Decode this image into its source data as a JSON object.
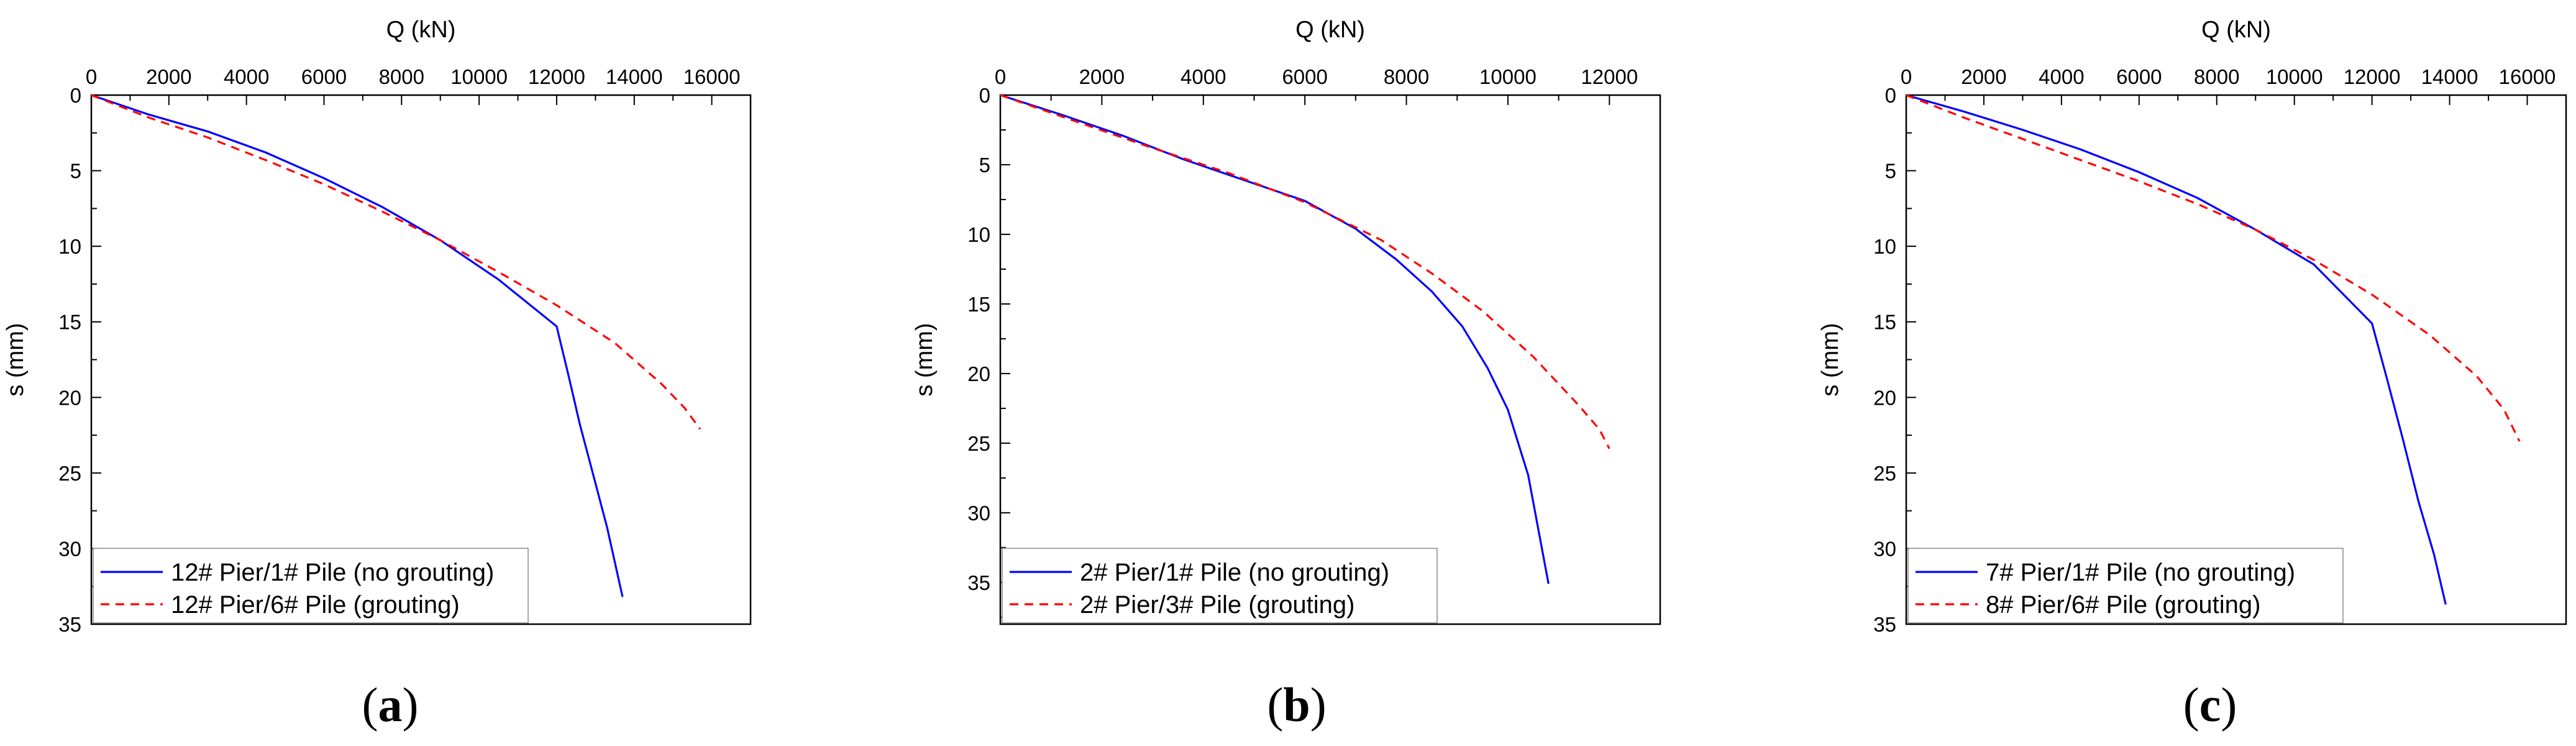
{
  "chart_data": [
    {
      "type": "line",
      "panel_label": "a",
      "xlabel": "Q (kN)",
      "ylabel": "s (mm)",
      "x_axis_position": "top",
      "y_axis_inverted": true,
      "xlim": [
        0,
        17000
      ],
      "ylim": [
        0,
        35
      ],
      "x_ticks": [
        0,
        2000,
        4000,
        6000,
        8000,
        10000,
        12000,
        14000,
        16000
      ],
      "y_ticks": [
        0,
        5,
        10,
        15,
        20,
        25,
        30,
        35
      ],
      "legend_position": "bottom-left",
      "series": [
        {
          "name": "12# Pier/1# Pile (no grouting)",
          "color": "#0000ff",
          "dash": "solid",
          "x": [
            0,
            1500,
            3000,
            4500,
            6000,
            7500,
            9000,
            10500,
            12000,
            12300,
            12600,
            12900,
            13300,
            13700
          ],
          "y": [
            0,
            1.3,
            2.4,
            3.8,
            5.5,
            7.4,
            9.6,
            12.2,
            15.3,
            18.5,
            21.8,
            24.7,
            28.6,
            33.2
          ]
        },
        {
          "name": "12# Pier/6# Pile (grouting)",
          "color": "#ff0000",
          "dash": "dashed",
          "x": [
            0,
            1500,
            3000,
            4500,
            6000,
            7500,
            9000,
            10500,
            12000,
            13500,
            14700,
            15300,
            15700
          ],
          "y": [
            0,
            1.5,
            2.8,
            4.3,
            5.9,
            7.7,
            9.6,
            11.7,
            13.9,
            16.4,
            19.1,
            20.7,
            22.1
          ]
        }
      ]
    },
    {
      "type": "line",
      "panel_label": "b",
      "xlabel": "Q (kN)",
      "ylabel": "s (mm)",
      "x_axis_position": "top",
      "y_axis_inverted": true,
      "xlim": [
        0,
        13000
      ],
      "ylim": [
        0,
        38
      ],
      "x_ticks": [
        0,
        2000,
        4000,
        6000,
        8000,
        10000,
        12000
      ],
      "y_ticks": [
        0,
        5,
        10,
        15,
        20,
        25,
        30,
        35
      ],
      "legend_position": "bottom-left",
      "series": [
        {
          "name": "2# Pier/1# Pile (no grouting)",
          "color": "#0000ff",
          "dash": "solid",
          "x": [
            0,
            1200,
            2400,
            3600,
            4800,
            6000,
            7000,
            7800,
            8500,
            9100,
            9600,
            10000,
            10400,
            10800
          ],
          "y": [
            0,
            1.4,
            2.9,
            4.6,
            6.1,
            7.6,
            9.6,
            11.8,
            14.1,
            16.6,
            19.6,
            22.6,
            27.3,
            35.1
          ]
        },
        {
          "name": "2# Pier/3# Pile (grouting)",
          "color": "#ff0000",
          "dash": "dashed",
          "x": [
            0,
            1500,
            3000,
            4500,
            6000,
            7500,
            8500,
            9500,
            10500,
            11400,
            11800,
            12000
          ],
          "y": [
            0,
            1.9,
            3.8,
            5.6,
            7.7,
            10.4,
            12.8,
            15.5,
            18.8,
            22.3,
            24.0,
            25.4
          ]
        }
      ]
    },
    {
      "type": "line",
      "panel_label": "c",
      "xlabel": "Q (kN)",
      "ylabel": "s (mm)",
      "x_axis_position": "top",
      "y_axis_inverted": true,
      "xlim": [
        0,
        17000
      ],
      "ylim": [
        0,
        35
      ],
      "x_ticks": [
        0,
        2000,
        4000,
        6000,
        8000,
        10000,
        12000,
        14000,
        16000
      ],
      "y_ticks": [
        0,
        5,
        10,
        15,
        20,
        25,
        30,
        35
      ],
      "legend_position": "bottom-left",
      "series": [
        {
          "name": "7# Pier/1# Pile (no grouting)",
          "color": "#0000ff",
          "dash": "solid",
          "x": [
            0,
            1500,
            3000,
            4500,
            6000,
            7500,
            9000,
            10500,
            12000,
            12400,
            12800,
            13200,
            13600,
            13900
          ],
          "y": [
            0,
            1.1,
            2.3,
            3.6,
            5.1,
            6.8,
            8.9,
            11.2,
            15.1,
            18.9,
            22.8,
            26.9,
            30.4,
            33.7
          ]
        },
        {
          "name": "8# Pier/6# Pile (grouting)",
          "color": "#ff0000",
          "dash": "dashed",
          "x": [
            0,
            1500,
            3000,
            4500,
            6000,
            7500,
            9000,
            10500,
            12000,
            13500,
            14700,
            15400,
            15800
          ],
          "y": [
            0,
            1.5,
            2.9,
            4.3,
            5.7,
            7.2,
            8.9,
            10.9,
            13.2,
            15.9,
            18.6,
            20.8,
            22.9
          ]
        }
      ]
    }
  ]
}
